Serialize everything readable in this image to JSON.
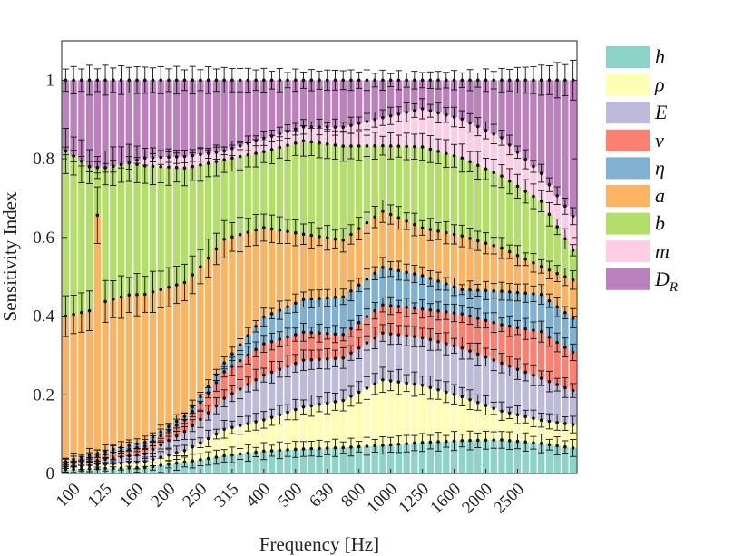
{
  "chart_data": {
    "type": "stacked-bar",
    "title": "",
    "xlabel": "Frequency [Hz]",
    "ylabel": "Sensitivity Index",
    "ylim": [
      0,
      1.1
    ],
    "yticks": [
      0,
      0.2,
      0.4,
      0.6,
      0.8,
      1
    ],
    "ytick_labels": [
      "0",
      "0.2",
      "0.4",
      "0.6",
      "0.8",
      "1"
    ],
    "xtick_labels": [
      "100",
      "125",
      "160",
      "200",
      "250",
      "315",
      "400",
      "500",
      "630",
      "800",
      "1000",
      "1250",
      "1600",
      "2000",
      "2500"
    ],
    "n_bars": 65,
    "legend_position": "outside-right",
    "error_bars": true,
    "series": [
      {
        "name": "h",
        "label_main": "h",
        "color": "#8dd3c7",
        "anchors": [
          [
            0,
            0.01
          ],
          [
            10,
            0.015
          ],
          [
            15,
            0.03
          ],
          [
            20,
            0.04
          ],
          [
            25,
            0.05
          ],
          [
            35,
            0.055
          ],
          [
            45,
            0.065
          ],
          [
            55,
            0.07
          ],
          [
            64,
            0.06
          ]
        ]
      },
      {
        "name": "ρ",
        "label_main": "ρ",
        "color": "#ffffb3",
        "anchors": [
          [
            0,
            0.005
          ],
          [
            10,
            0.015
          ],
          [
            15,
            0.03
          ],
          [
            20,
            0.06
          ],
          [
            25,
            0.07
          ],
          [
            30,
            0.09
          ],
          [
            35,
            0.1
          ],
          [
            40,
            0.14
          ],
          [
            45,
            0.12
          ],
          [
            50,
            0.09
          ],
          [
            55,
            0.06
          ],
          [
            60,
            0.05
          ],
          [
            64,
            0.055
          ]
        ]
      },
      {
        "name": "E",
        "label_main": "E",
        "color": "#bebada",
        "anchors": [
          [
            0,
            0.005
          ],
          [
            10,
            0.02
          ],
          [
            15,
            0.05
          ],
          [
            20,
            0.07
          ],
          [
            25,
            0.1
          ],
          [
            30,
            0.1
          ],
          [
            35,
            0.09
          ],
          [
            40,
            0.1
          ],
          [
            45,
            0.1
          ],
          [
            50,
            0.1
          ],
          [
            55,
            0.1
          ],
          [
            60,
            0.09
          ],
          [
            64,
            0.08
          ]
        ]
      },
      {
        "name": "ν",
        "label_main": "ν",
        "color": "#fb8072",
        "anchors": [
          [
            0,
            0.005
          ],
          [
            10,
            0.02
          ],
          [
            15,
            0.03
          ],
          [
            20,
            0.06
          ],
          [
            25,
            0.07
          ],
          [
            30,
            0.06
          ],
          [
            35,
            0.05
          ],
          [
            40,
            0.06
          ],
          [
            45,
            0.06
          ],
          [
            50,
            0.07
          ],
          [
            55,
            0.08
          ],
          [
            60,
            0.1
          ],
          [
            64,
            0.09
          ]
        ]
      },
      {
        "name": "η",
        "label_main": "η",
        "color": "#80b1d3",
        "anchors": [
          [
            0,
            0.005
          ],
          [
            10,
            0.01
          ],
          [
            15,
            0.01
          ],
          [
            20,
            0.02
          ],
          [
            25,
            0.06
          ],
          [
            30,
            0.07
          ],
          [
            35,
            0.08
          ],
          [
            40,
            0.08
          ],
          [
            45,
            0.07
          ],
          [
            50,
            0.05
          ],
          [
            55,
            0.07
          ],
          [
            60,
            0.08
          ],
          [
            64,
            0.08
          ]
        ]
      },
      {
        "name": "a",
        "label_main": "a",
        "color": "#fdb462",
        "anchors": [
          [
            0,
            0.37
          ],
          [
            3,
            0.35
          ],
          [
            4,
            0.6
          ],
          [
            5,
            0.37
          ],
          [
            10,
            0.38
          ],
          [
            15,
            0.35
          ],
          [
            20,
            0.28
          ],
          [
            25,
            0.2
          ],
          [
            30,
            0.14
          ],
          [
            35,
            0.12
          ],
          [
            40,
            0.12
          ],
          [
            45,
            0.1
          ],
          [
            50,
            0.11
          ],
          [
            55,
            0.09
          ],
          [
            60,
            0.06
          ],
          [
            64,
            0.09
          ]
        ]
      },
      {
        "name": "b",
        "label_main": "b",
        "color": "#b3de69",
        "anchors": [
          [
            0,
            0.42
          ],
          [
            3,
            0.35
          ],
          [
            4,
            0.12
          ],
          [
            5,
            0.33
          ],
          [
            10,
            0.33
          ],
          [
            15,
            0.3
          ],
          [
            20,
            0.18
          ],
          [
            25,
            0.17
          ],
          [
            30,
            0.2
          ],
          [
            35,
            0.2
          ],
          [
            40,
            0.14
          ],
          [
            45,
            0.17
          ],
          [
            50,
            0.16
          ],
          [
            55,
            0.15
          ],
          [
            60,
            0.14
          ],
          [
            64,
            0.07
          ]
        ]
      },
      {
        "name": "m",
        "label_main": "m",
        "color": "#fccde5",
        "anchors": [
          [
            0,
            0
          ],
          [
            8,
            0
          ],
          [
            10,
            0.02
          ],
          [
            15,
            0.03
          ],
          [
            20,
            0.02
          ],
          [
            25,
            0.03
          ],
          [
            30,
            0.03
          ],
          [
            35,
            0.04
          ],
          [
            40,
            0.06
          ],
          [
            45,
            0.08
          ],
          [
            50,
            0.08
          ],
          [
            55,
            0.08
          ],
          [
            60,
            0.06
          ],
          [
            64,
            0.08
          ]
        ]
      },
      {
        "name": "D_R",
        "label_main": "D",
        "label_sub": "R",
        "color": "#bc80bd",
        "anchors": [
          [
            0,
            0.18
          ],
          [
            4,
            0.22
          ],
          [
            10,
            0.2
          ],
          [
            15,
            0.2
          ],
          [
            20,
            0.16
          ],
          [
            25,
            0.13
          ],
          [
            30,
            0.1
          ],
          [
            35,
            0.1
          ],
          [
            40,
            0.08
          ],
          [
            45,
            0.06
          ],
          [
            50,
            0.08
          ],
          [
            55,
            0.12
          ],
          [
            60,
            0.2
          ],
          [
            64,
            0.32
          ]
        ]
      }
    ]
  }
}
